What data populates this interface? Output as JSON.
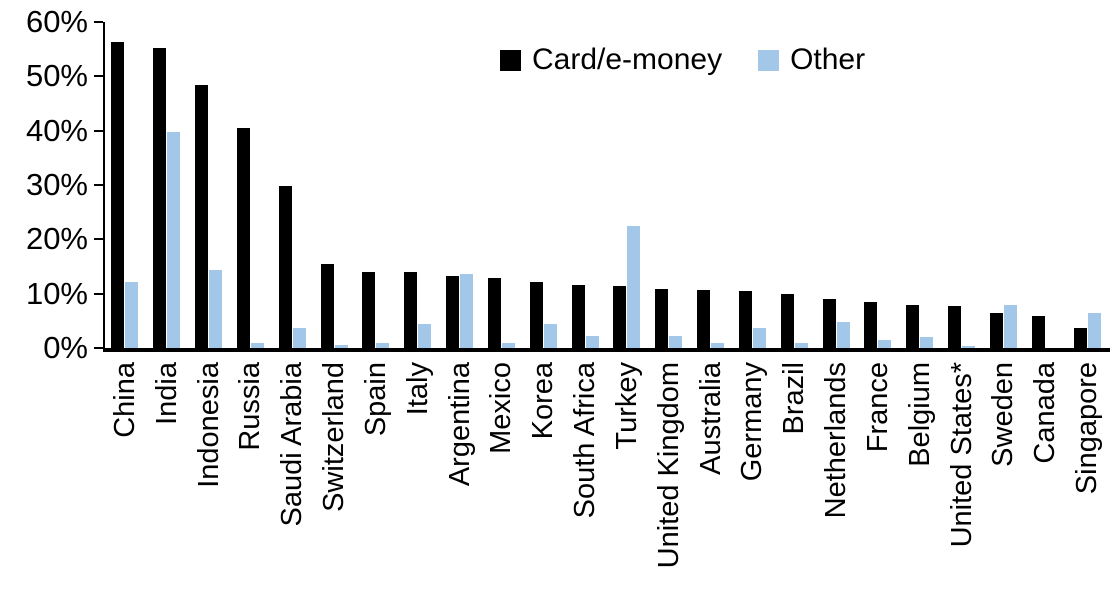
{
  "chart_data": {
    "type": "bar",
    "title": "",
    "xlabel": "",
    "ylabel": "",
    "ylim": [
      0,
      60
    ],
    "yticks": [
      0,
      10,
      20,
      30,
      40,
      50,
      60
    ],
    "ytick_labels": [
      "0%",
      "10%",
      "20%",
      "30%",
      "40%",
      "50%",
      "60%"
    ],
    "grid": false,
    "legend_position": "top-center",
    "categories": [
      "China",
      "India",
      "Indonesia",
      "Russia",
      "Saudi Arabia",
      "Switzerland",
      "Spain",
      "Italy",
      "Argentina",
      "Mexico",
      "Korea",
      "South Africa",
      "Turkey",
      "United Kingdom",
      "Australia",
      "Germany",
      "Brazil",
      "Netherlands",
      "France",
      "Belgium",
      "United States*",
      "Sweden",
      "Canada",
      "Singapore"
    ],
    "series": [
      {
        "name": "Card/e-money",
        "color": "#000000",
        "values": [
          56.3,
          55.2,
          48.4,
          40.5,
          29.8,
          15.5,
          14.0,
          13.9,
          13.3,
          12.8,
          12.1,
          11.6,
          11.5,
          10.9,
          10.7,
          10.5,
          9.9,
          9.1,
          8.5,
          7.9,
          7.7,
          6.4,
          5.8,
          3.7
        ]
      },
      {
        "name": "Other",
        "color": "#a3c7e8",
        "values": [
          12.2,
          39.8,
          14.4,
          0.9,
          3.7,
          0.6,
          0.9,
          4.4,
          13.7,
          1.0,
          4.4,
          2.3,
          22.5,
          2.3,
          0.9,
          3.7,
          1.0,
          4.7,
          1.5,
          2.0,
          0.4,
          8.0,
          0.0,
          6.5
        ]
      }
    ]
  }
}
